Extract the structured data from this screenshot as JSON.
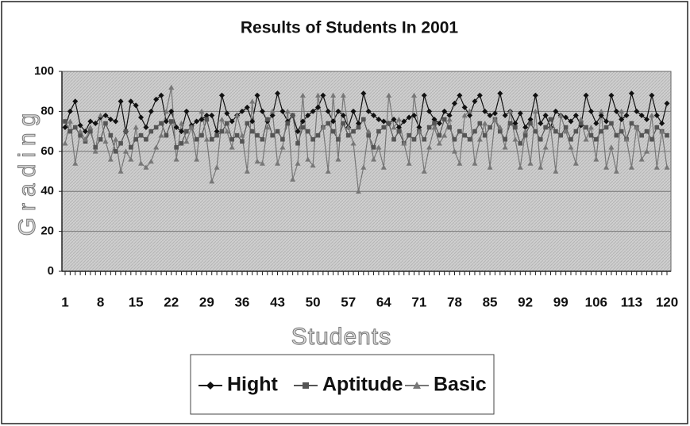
{
  "chart_data": {
    "type": "line",
    "title": "Results of Students In 2001",
    "x_label": "Students",
    "y_label": "Grading",
    "categories": [
      1,
      null,
      null,
      null,
      null,
      null,
      null,
      8,
      null,
      null,
      null,
      null,
      null,
      null,
      15,
      null,
      null,
      null,
      null,
      null,
      null,
      22,
      null,
      null,
      null,
      null,
      null,
      null,
      29,
      null,
      null,
      null,
      null,
      null,
      null,
      36,
      null,
      null,
      null,
      null,
      null,
      null,
      43,
      null,
      null,
      null,
      null,
      null,
      null,
      50,
      null,
      null,
      null,
      null,
      null,
      null,
      57,
      null,
      null,
      null,
      null,
      null,
      null,
      64,
      null,
      null,
      null,
      null,
      null,
      null,
      71,
      null,
      null,
      null,
      null,
      null,
      null,
      78,
      null,
      null,
      null,
      null,
      null,
      null,
      85,
      null,
      null,
      null,
      null,
      null,
      null,
      92,
      null,
      null,
      null,
      null,
      null,
      null,
      99,
      null,
      null,
      null,
      null,
      null,
      null,
      106,
      null,
      null,
      null,
      null,
      null,
      null,
      113,
      null,
      null,
      null,
      null,
      null,
      null,
      120
    ],
    "ylim": [
      0,
      100
    ],
    "yticks": [
      0,
      20,
      40,
      60,
      80,
      100
    ],
    "grid": true,
    "legend": "bottom",
    "series": [
      {
        "name": "Hight",
        "color": "#111111",
        "marker": "diamond",
        "values": [
          72,
          80,
          85,
          73,
          70,
          75,
          74,
          77,
          78,
          76,
          75,
          85,
          70,
          85,
          83,
          77,
          72,
          80,
          86,
          88,
          75,
          80,
          72,
          70,
          80,
          73,
          75,
          76,
          78,
          78,
          70,
          88,
          79,
          75,
          78,
          80,
          82,
          75,
          88,
          80,
          75,
          78,
          89,
          80,
          75,
          78,
          70,
          75,
          78,
          80,
          82,
          88,
          80,
          75,
          80,
          78,
          72,
          80,
          74,
          89,
          80,
          78,
          76,
          75,
          74,
          76,
          72,
          75,
          77,
          78,
          72,
          88,
          80,
          76,
          74,
          80,
          78,
          84,
          88,
          82,
          78,
          85,
          88,
          80,
          78,
          79,
          89,
          78,
          80,
          74,
          79,
          72,
          76,
          88,
          74,
          78,
          72,
          80,
          78,
          77,
          75,
          78,
          73,
          88,
          80,
          74,
          78,
          75,
          88,
          80,
          76,
          78,
          89,
          80,
          78,
          76,
          88,
          78,
          74,
          84
        ]
      },
      {
        "name": "Aptitude",
        "color": "#555555",
        "marker": "square",
        "values": [
          75,
          70,
          72,
          68,
          65,
          70,
          62,
          66,
          74,
          68,
          60,
          64,
          70,
          62,
          66,
          68,
          66,
          70,
          72,
          74,
          68,
          75,
          62,
          64,
          70,
          72,
          66,
          68,
          76,
          66,
          68,
          70,
          74,
          66,
          68,
          65,
          74,
          70,
          68,
          66,
          76,
          68,
          70,
          66,
          74,
          78,
          64,
          72,
          70,
          66,
          68,
          72,
          74,
          70,
          66,
          74,
          68,
          70,
          72,
          76,
          68,
          62,
          70,
          72,
          74,
          66,
          70,
          64,
          68,
          66,
          70,
          66,
          72,
          74,
          68,
          76,
          72,
          66,
          70,
          68,
          66,
          70,
          74,
          68,
          72,
          76,
          70,
          66,
          74,
          72,
          64,
          68,
          74,
          70,
          66,
          72,
          76,
          70,
          68,
          72,
          66,
          70,
          74,
          72,
          68,
          66,
          70,
          72,
          74,
          68,
          70,
          66,
          74,
          72,
          68,
          70,
          66,
          72,
          70,
          68
        ]
      },
      {
        "name": "Basic",
        "color": "#777777",
        "marker": "triangle",
        "values": [
          64,
          75,
          54,
          70,
          66,
          72,
          60,
          78,
          65,
          56,
          66,
          50,
          60,
          56,
          72,
          54,
          52,
          55,
          62,
          68,
          80,
          92,
          56,
          74,
          65,
          72,
          56,
          80,
          66,
          45,
          52,
          76,
          70,
          62,
          78,
          68,
          50,
          85,
          55,
          54,
          72,
          80,
          54,
          62,
          80,
          46,
          54,
          88,
          56,
          53,
          88,
          72,
          50,
          88,
          56,
          88,
          72,
          64,
          40,
          52,
          70,
          56,
          62,
          52,
          88,
          72,
          76,
          64,
          54,
          88,
          70,
          50,
          62,
          72,
          64,
          68,
          76,
          60,
          54,
          78,
          80,
          54,
          66,
          74,
          52,
          76,
          72,
          62,
          80,
          66,
          52,
          70,
          54,
          80,
          52,
          62,
          72,
          50,
          78,
          70,
          62,
          54,
          76,
          66,
          72,
          56,
          80,
          52,
          62,
          50,
          80,
          66,
          52,
          72,
          56,
          60,
          78,
          52,
          70,
          52
        ]
      }
    ]
  }
}
